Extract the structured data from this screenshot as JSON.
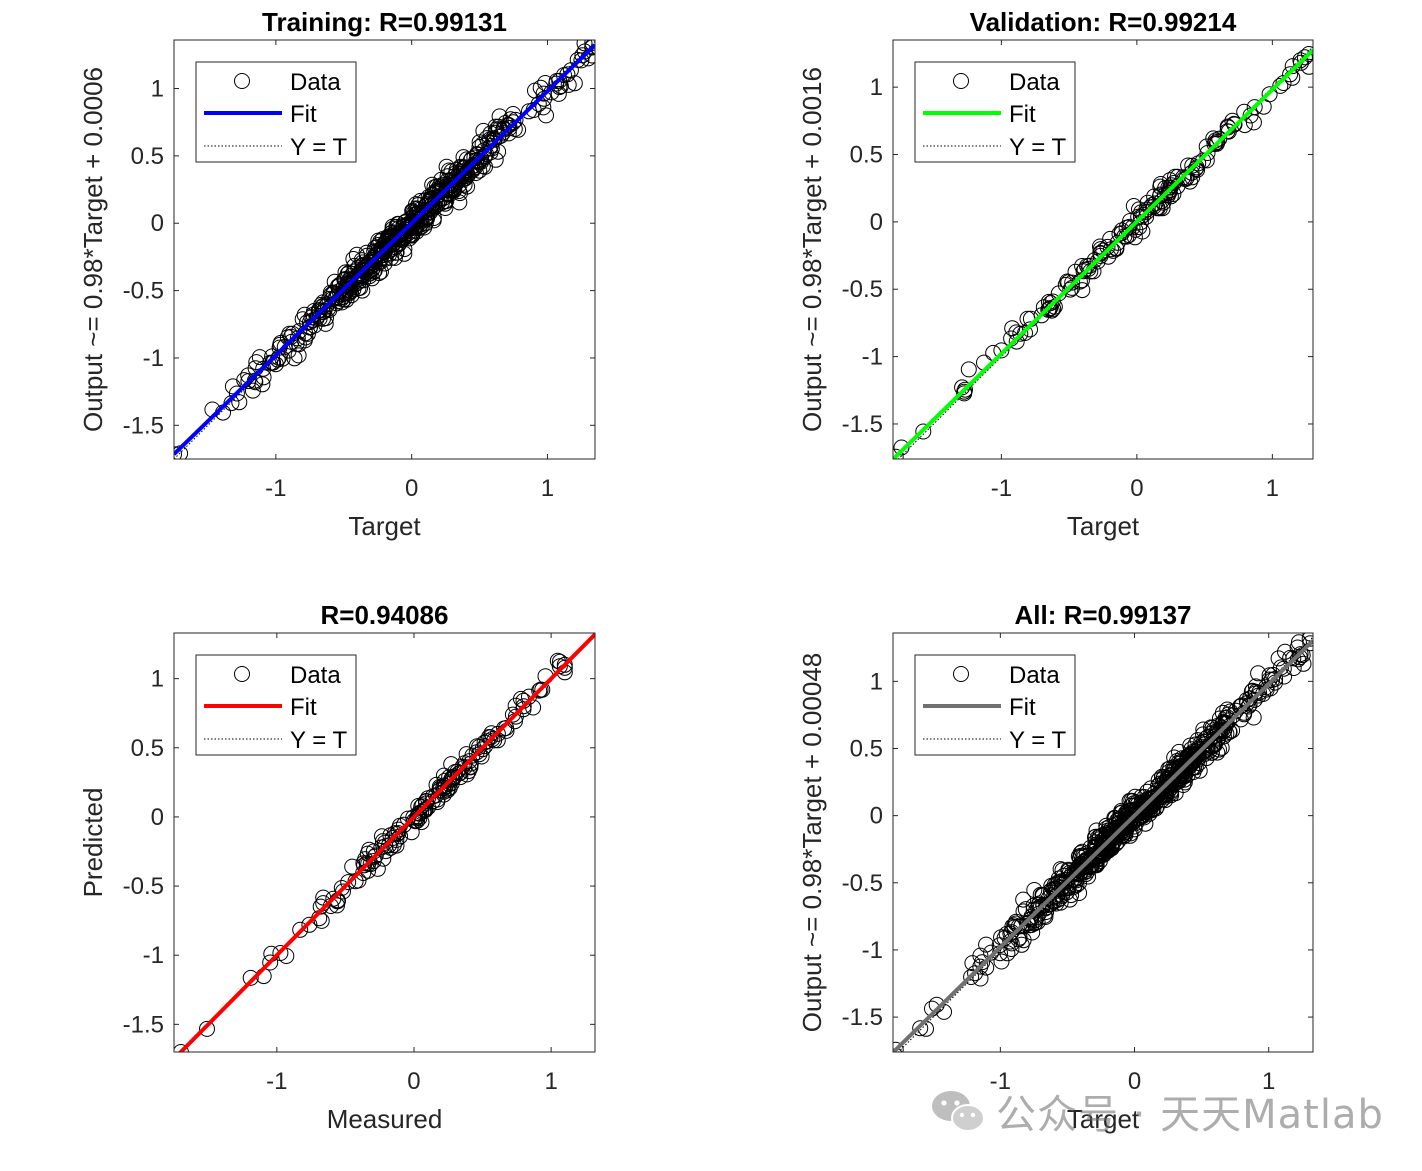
{
  "watermark": {
    "text": "公众号 · 天天Matlab",
    "icon": "wechat-icon"
  },
  "chart_data": [
    {
      "id": "training",
      "type": "scatter",
      "title": "Training: R=0.99131",
      "xlabel": "Target",
      "ylabel": "Output ~= 0.98*Target + 0.0006",
      "xlim": [
        -1.75,
        1.35
      ],
      "ylim": [
        -1.75,
        1.36
      ],
      "xticks": [
        -1,
        0,
        1
      ],
      "xtick_labels": [
        "-1",
        "0",
        "1"
      ],
      "yticks": [
        -1.5,
        -1,
        -0.5,
        0,
        0.5,
        1
      ],
      "ytick_labels": [
        "-1.5",
        "-1",
        "-0.5",
        "0",
        "0.5",
        "1"
      ],
      "fit": {
        "slope": 0.98,
        "intercept": 0.0006,
        "color": "#0000ff"
      },
      "legend": {
        "position": "top-left",
        "entries": [
          "Data",
          "Fit",
          "Y = T"
        ]
      },
      "data_summary": {
        "x_range": [
          -1.75,
          1.33
        ],
        "spread": 0.06,
        "n": 560,
        "seed": 11
      }
    },
    {
      "id": "validation",
      "type": "scatter",
      "title": "Validation: R=0.99214",
      "xlabel": "Target",
      "ylabel": "Output ~= 0.98*Target + 0.0016",
      "xlim": [
        -1.8,
        1.3
      ],
      "ylim": [
        -1.76,
        1.35
      ],
      "xticks": [
        -1,
        0,
        1
      ],
      "xtick_labels": [
        "-1",
        "0",
        "1"
      ],
      "yticks": [
        -1.5,
        -1,
        -0.5,
        0,
        0.5,
        1
      ],
      "ytick_labels": [
        "-1.5",
        "-1",
        "-0.5",
        "0",
        "0.5",
        "1"
      ],
      "fit": {
        "slope": 0.98,
        "intercept": 0.0016,
        "color": "#00ff00"
      },
      "legend": {
        "position": "top-left",
        "entries": [
          "Data",
          "Fit",
          "Y = T"
        ]
      },
      "data_summary": {
        "x_range": [
          -1.78,
          1.27
        ],
        "spread": 0.045,
        "n": 170,
        "seed": 23
      }
    },
    {
      "id": "test",
      "type": "scatter",
      "title": "R=0.94086",
      "xlabel": "Measured",
      "ylabel": "Predicted",
      "xlim": [
        -1.75,
        1.32
      ],
      "ylim": [
        -1.7,
        1.33
      ],
      "xticks": [
        -1,
        0,
        1
      ],
      "xtick_labels": [
        "-1",
        "0",
        "1"
      ],
      "yticks": [
        -1.5,
        -1,
        -0.5,
        0,
        0.5,
        1
      ],
      "ytick_labels": [
        "-1.5",
        "-1",
        "-0.5",
        "0",
        "0.5",
        "1"
      ],
      "fit": {
        "slope": 1.0,
        "intercept": 0.0,
        "color": "#ff0000"
      },
      "legend": {
        "position": "top-left",
        "entries": [
          "Data",
          "Fit",
          "Y = T"
        ]
      },
      "data_summary": {
        "x_range": [
          -1.7,
          1.1
        ],
        "spread": 0.045,
        "n": 170,
        "seed": 37
      }
    },
    {
      "id": "all",
      "type": "scatter",
      "title": "All: R=0.99137",
      "xlabel": "Target",
      "ylabel": "Output ~= 0.98*Target + 0.00048",
      "xlim": [
        -1.8,
        1.33
      ],
      "ylim": [
        -1.76,
        1.36
      ],
      "xticks": [
        -1,
        0,
        1
      ],
      "xtick_labels": [
        "-1",
        "0",
        "1"
      ],
      "yticks": [
        -1.5,
        -1,
        -0.5,
        0,
        0.5,
        1
      ],
      "ytick_labels": [
        "-1.5",
        "-1",
        "-0.5",
        "0",
        "0.5",
        "1"
      ],
      "fit": {
        "slope": 0.98,
        "intercept": 0.00048,
        "color": "#707070"
      },
      "legend": {
        "position": "top-left",
        "entries": [
          "Data",
          "Fit",
          "Y = T"
        ]
      },
      "data_summary": {
        "x_range": [
          -1.78,
          1.31
        ],
        "spread": 0.06,
        "n": 700,
        "seed": 53
      }
    }
  ]
}
